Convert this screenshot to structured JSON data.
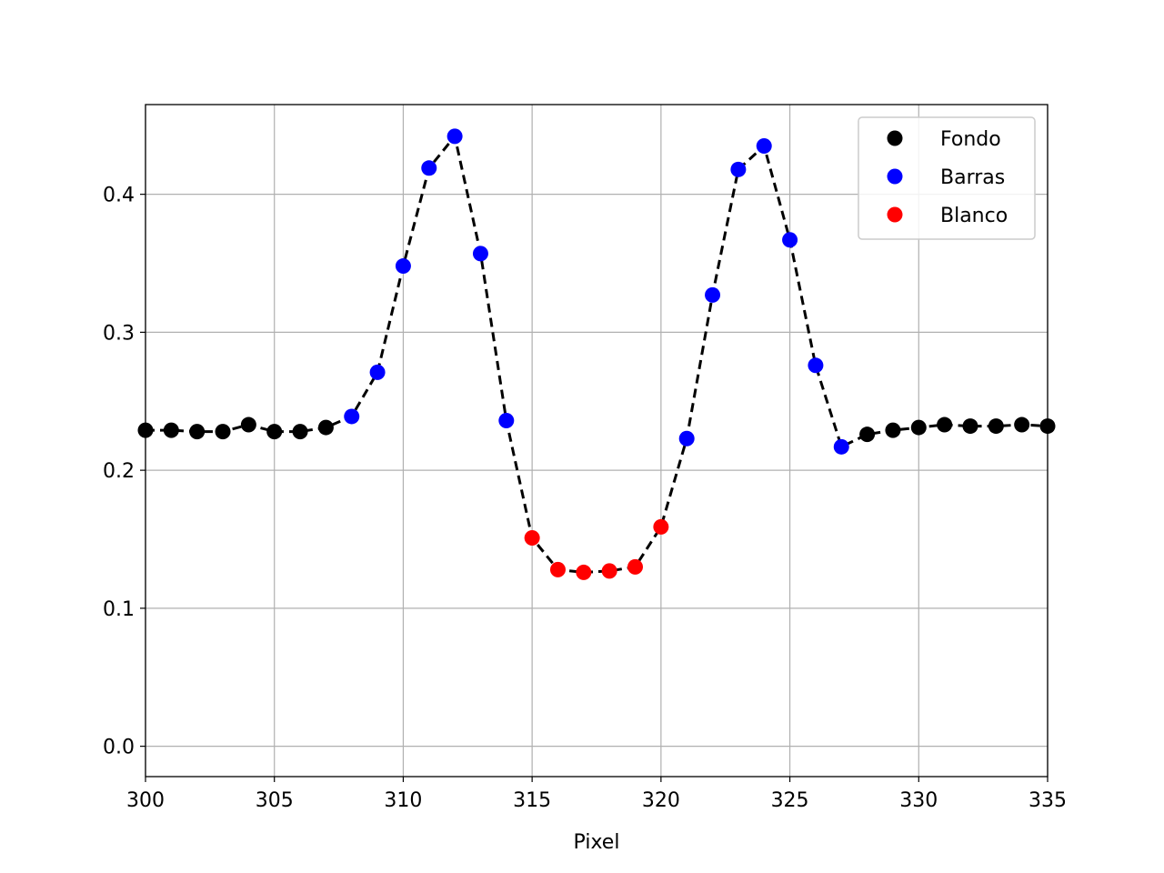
{
  "chart_data": {
    "type": "scatter",
    "title": "",
    "xlabel": "Pixel",
    "ylabel": "",
    "xlim": [
      300,
      335
    ],
    "ylim": [
      -0.022,
      0.465
    ],
    "xticks": [
      "300",
      "305",
      "310",
      "315",
      "320",
      "325",
      "330",
      "335"
    ],
    "yticks": [
      "0.0",
      "0.1",
      "0.2",
      "0.3",
      "0.4"
    ],
    "grid": true,
    "legend_position": "top-right",
    "line": {
      "style": "dashed",
      "color": "#000000"
    },
    "series": [
      {
        "name": "Fondo",
        "color": "#000000",
        "x": [
          300,
          301,
          302,
          303,
          304,
          305,
          306,
          307,
          328,
          329,
          330,
          331,
          332,
          333,
          334,
          335
        ],
        "y": [
          0.229,
          0.229,
          0.228,
          0.228,
          0.233,
          0.228,
          0.228,
          0.231,
          0.226,
          0.229,
          0.231,
          0.233,
          0.232,
          0.232,
          0.233,
          0.232
        ]
      },
      {
        "name": "Barras",
        "color": "#0000ff",
        "x": [
          308,
          309,
          310,
          311,
          312,
          313,
          314,
          321,
          322,
          323,
          324,
          325,
          326,
          327
        ],
        "y": [
          0.239,
          0.271,
          0.348,
          0.419,
          0.442,
          0.357,
          0.236,
          0.223,
          0.327,
          0.418,
          0.435,
          0.367,
          0.276,
          0.217
        ]
      },
      {
        "name": "Blanco",
        "color": "#ff0000",
        "x": [
          315,
          316,
          317,
          318,
          319,
          320
        ],
        "y": [
          0.151,
          0.128,
          0.126,
          0.127,
          0.13,
          0.159
        ]
      }
    ]
  }
}
